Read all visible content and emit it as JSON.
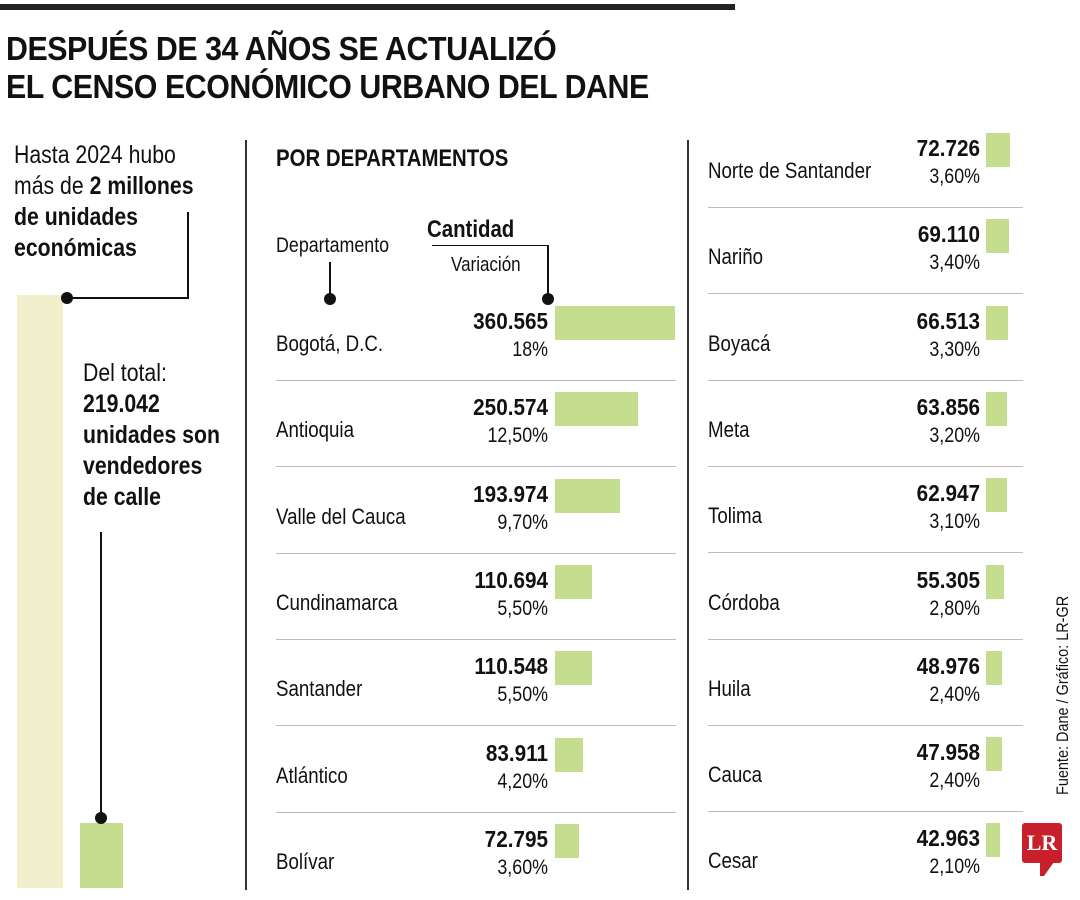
{
  "title": [
    "DESPUÉS DE 34 AÑOS SE ACTUALIZÓ",
    "EL CENSO ECONÓMICO URBANO DEL DANE"
  ],
  "left": {
    "intro_regular": "Hasta 2024 hubo",
    "intro_regular2": "más de ",
    "intro_bold": "2 millones",
    "intro_bold2": "de unidades",
    "intro_bold3": "económicas",
    "sub_regular": "Del total:",
    "sub_bold": [
      "219.042",
      "unidades son",
      "vendedores",
      "de calle"
    ]
  },
  "section_title": "POR DEPARTAMENTOS",
  "legend": {
    "department": "Departamento",
    "quantity": "Cantidad",
    "variation": "Variación"
  },
  "source": "Fuente: Dane / Gráfico: LR-GR",
  "logo": "LR",
  "colors": {
    "bar": "#c5dd8e",
    "total_bar": "#f0f0cc",
    "logo": "#c8202a"
  },
  "chart_data": {
    "type": "bar",
    "title": "POR DEPARTAMENTOS",
    "totals": {
      "total_units": 2000000,
      "street_vendors": 219042
    },
    "rows": [
      {
        "department": "Bogotá, D.C.",
        "quantity": 360565,
        "quantity_label": "360.565",
        "variation": "18%"
      },
      {
        "department": "Antioquia",
        "quantity": 250574,
        "quantity_label": "250.574",
        "variation": "12,50%"
      },
      {
        "department": "Valle del Cauca",
        "quantity": 193974,
        "quantity_label": "193.974",
        "variation": "9,70%"
      },
      {
        "department": "Cundinamarca",
        "quantity": 110694,
        "quantity_label": "110.694",
        "variation": "5,50%"
      },
      {
        "department": "Santander",
        "quantity": 110548,
        "quantity_label": "110.548",
        "variation": "5,50%"
      },
      {
        "department": "Atlántico",
        "quantity": 83911,
        "quantity_label": "83.911",
        "variation": "4,20%"
      },
      {
        "department": "Bolívar",
        "quantity": 72795,
        "quantity_label": "72.795",
        "variation": "3,60%"
      },
      {
        "department": "Norte de Santander",
        "quantity": 72726,
        "quantity_label": "72.726",
        "variation": "3,60%"
      },
      {
        "department": "Nariño",
        "quantity": 69110,
        "quantity_label": "69.110",
        "variation": "3,40%"
      },
      {
        "department": "Boyacá",
        "quantity": 66513,
        "quantity_label": "66.513",
        "variation": "3,30%"
      },
      {
        "department": "Meta",
        "quantity": 63856,
        "quantity_label": "63.856",
        "variation": "3,20%"
      },
      {
        "department": "Tolima",
        "quantity": 62947,
        "quantity_label": "62.947",
        "variation": "3,10%"
      },
      {
        "department": "Córdoba",
        "quantity": 55305,
        "quantity_label": "55.305",
        "variation": "2,80%"
      },
      {
        "department": "Huila",
        "quantity": 48976,
        "quantity_label": "48.976",
        "variation": "2,40%"
      },
      {
        "department": "Cauca",
        "quantity": 47958,
        "quantity_label": "47.958",
        "variation": "2,40%"
      },
      {
        "department": "Cesar",
        "quantity": 42963,
        "quantity_label": "42.963",
        "variation": "2,10%"
      }
    ]
  }
}
